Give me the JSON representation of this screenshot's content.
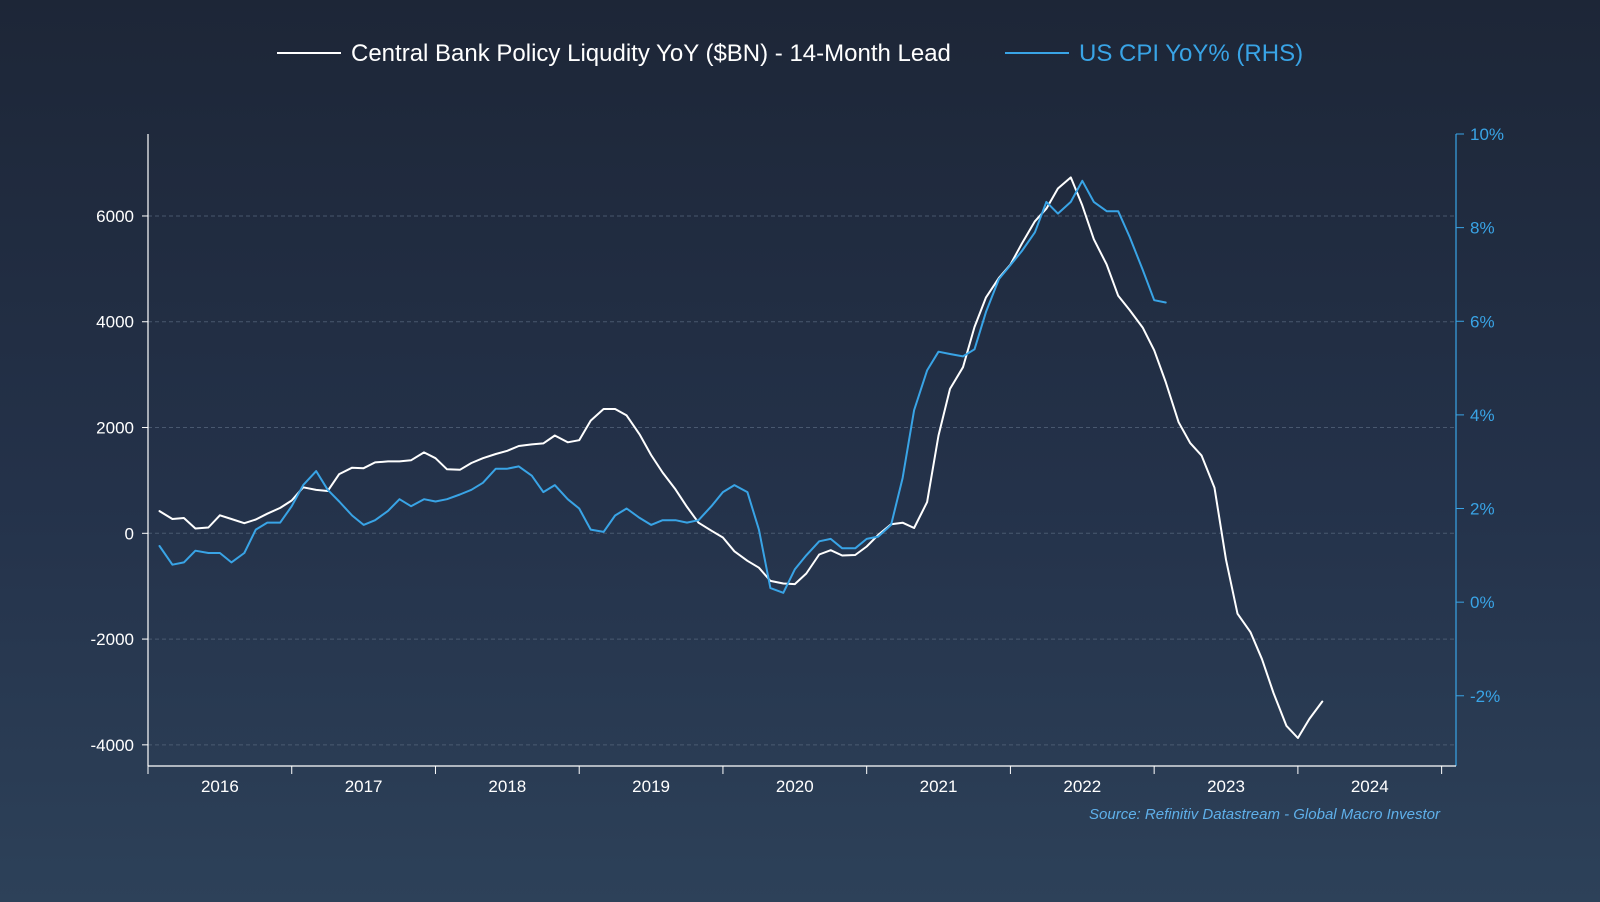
{
  "colors": {
    "liquidity": "#ffffff",
    "cpi": "#39a4e6",
    "grid": "#5a6a80",
    "axis": "#ffffff"
  },
  "chart_data": {
    "type": "line",
    "legend_position": "top-center",
    "grid": true,
    "x_axis": {
      "range": [
        2015.5,
        2024.6
      ],
      "ticks": [
        2016,
        2017,
        2018,
        2019,
        2020,
        2021,
        2022,
        2023,
        2024
      ],
      "tick_labels": [
        "2016",
        "2017",
        "2018",
        "2019",
        "2020",
        "2021",
        "2022",
        "2023",
        "2024"
      ]
    },
    "y_left": {
      "range": [
        -4400,
        7550
      ],
      "ticks": [
        -4000,
        -2000,
        0,
        2000,
        4000,
        6000
      ],
      "tick_labels": [
        "-4000",
        "-2000",
        "0",
        "2000",
        "4000",
        "6000"
      ]
    },
    "y_right": {
      "range": [
        -3.5,
        10
      ],
      "ticks": [
        -2,
        0,
        2,
        4,
        6,
        8,
        10
      ],
      "tick_labels": [
        "-2%",
        "0%",
        "2%",
        "4%",
        "6%",
        "8%",
        "10%"
      ]
    },
    "source": "Source: Refinitiv Datastream - Global Macro Investor",
    "series": [
      {
        "name": "Central Bank Policy Liqudity YoY ($BN) - 14-Month Lead",
        "axis": "left",
        "points": [
          [
            2015.58,
            420
          ],
          [
            2015.67,
            270
          ],
          [
            2015.75,
            290
          ],
          [
            2015.83,
            90
          ],
          [
            2015.92,
            110
          ],
          [
            2016.0,
            340
          ],
          [
            2016.08,
            270
          ],
          [
            2016.17,
            190
          ],
          [
            2016.25,
            260
          ],
          [
            2016.33,
            370
          ],
          [
            2016.42,
            480
          ],
          [
            2016.5,
            620
          ],
          [
            2016.58,
            870
          ],
          [
            2016.67,
            820
          ],
          [
            2016.75,
            800
          ],
          [
            2016.83,
            1120
          ],
          [
            2016.92,
            1240
          ],
          [
            2017.0,
            1230
          ],
          [
            2017.08,
            1340
          ],
          [
            2017.17,
            1360
          ],
          [
            2017.25,
            1360
          ],
          [
            2017.33,
            1380
          ],
          [
            2017.42,
            1530
          ],
          [
            2017.5,
            1420
          ],
          [
            2017.58,
            1210
          ],
          [
            2017.67,
            1200
          ],
          [
            2017.75,
            1330
          ],
          [
            2017.83,
            1420
          ],
          [
            2017.92,
            1500
          ],
          [
            2018.0,
            1560
          ],
          [
            2018.08,
            1650
          ],
          [
            2018.17,
            1680
          ],
          [
            2018.25,
            1700
          ],
          [
            2018.33,
            1850
          ],
          [
            2018.42,
            1720
          ],
          [
            2018.5,
            1760
          ],
          [
            2018.58,
            2130
          ],
          [
            2018.67,
            2350
          ],
          [
            2018.75,
            2350
          ],
          [
            2018.83,
            2230
          ],
          [
            2018.92,
            1870
          ],
          [
            2019.0,
            1480
          ],
          [
            2019.08,
            1150
          ],
          [
            2019.17,
            830
          ],
          [
            2019.25,
            500
          ],
          [
            2019.33,
            200
          ],
          [
            2019.42,
            50
          ],
          [
            2019.5,
            -80
          ],
          [
            2019.58,
            -340
          ],
          [
            2019.67,
            -520
          ],
          [
            2019.75,
            -650
          ],
          [
            2019.83,
            -900
          ],
          [
            2019.92,
            -950
          ],
          [
            2020.0,
            -960
          ],
          [
            2020.08,
            -760
          ],
          [
            2020.17,
            -400
          ],
          [
            2020.25,
            -320
          ],
          [
            2020.33,
            -420
          ],
          [
            2020.42,
            -410
          ],
          [
            2020.5,
            -250
          ],
          [
            2020.58,
            -30
          ],
          [
            2020.67,
            170
          ],
          [
            2020.75,
            200
          ],
          [
            2020.83,
            100
          ],
          [
            2020.92,
            590
          ],
          [
            2021.0,
            1850
          ],
          [
            2021.08,
            2730
          ],
          [
            2021.17,
            3140
          ],
          [
            2021.25,
            3900
          ],
          [
            2021.33,
            4460
          ],
          [
            2021.42,
            4830
          ],
          [
            2021.5,
            5080
          ],
          [
            2021.58,
            5480
          ],
          [
            2021.67,
            5900
          ],
          [
            2021.75,
            6140
          ],
          [
            2021.83,
            6520
          ],
          [
            2021.92,
            6730
          ],
          [
            2022.0,
            6200
          ],
          [
            2022.08,
            5560
          ],
          [
            2022.17,
            5080
          ],
          [
            2022.25,
            4490
          ],
          [
            2022.33,
            4220
          ],
          [
            2022.42,
            3890
          ],
          [
            2022.5,
            3460
          ],
          [
            2022.58,
            2860
          ],
          [
            2022.67,
            2100
          ],
          [
            2022.75,
            1710
          ],
          [
            2022.83,
            1470
          ],
          [
            2022.92,
            860
          ],
          [
            2023.0,
            -500
          ],
          [
            2023.08,
            -1520
          ],
          [
            2023.17,
            -1870
          ],
          [
            2023.25,
            -2380
          ],
          [
            2023.33,
            -3020
          ],
          [
            2023.42,
            -3640
          ],
          [
            2023.5,
            -3870
          ],
          [
            2023.58,
            -3510
          ],
          [
            2023.67,
            -3180
          ]
        ]
      },
      {
        "name": "US CPI YoY% (RHS)",
        "axis": "right",
        "points": [
          [
            2015.58,
            1.2
          ],
          [
            2015.67,
            0.8
          ],
          [
            2015.75,
            0.85
          ],
          [
            2015.83,
            1.1
          ],
          [
            2015.92,
            1.05
          ],
          [
            2016.0,
            1.05
          ],
          [
            2016.08,
            0.85
          ],
          [
            2016.17,
            1.05
          ],
          [
            2016.25,
            1.55
          ],
          [
            2016.33,
            1.7
          ],
          [
            2016.42,
            1.7
          ],
          [
            2016.5,
            2.05
          ],
          [
            2016.58,
            2.5
          ],
          [
            2016.67,
            2.8
          ],
          [
            2016.75,
            2.4
          ],
          [
            2016.83,
            2.15
          ],
          [
            2016.92,
            1.85
          ],
          [
            2017.0,
            1.65
          ],
          [
            2017.08,
            1.75
          ],
          [
            2017.17,
            1.95
          ],
          [
            2017.25,
            2.2
          ],
          [
            2017.33,
            2.05
          ],
          [
            2017.42,
            2.2
          ],
          [
            2017.5,
            2.15
          ],
          [
            2017.58,
            2.2
          ],
          [
            2017.67,
            2.3
          ],
          [
            2017.75,
            2.4
          ],
          [
            2017.83,
            2.55
          ],
          [
            2017.92,
            2.85
          ],
          [
            2018.0,
            2.85
          ],
          [
            2018.08,
            2.9
          ],
          [
            2018.17,
            2.7
          ],
          [
            2018.25,
            2.35
          ],
          [
            2018.33,
            2.5
          ],
          [
            2018.42,
            2.2
          ],
          [
            2018.5,
            2.0
          ],
          [
            2018.58,
            1.55
          ],
          [
            2018.67,
            1.5
          ],
          [
            2018.75,
            1.85
          ],
          [
            2018.83,
            2.0
          ],
          [
            2018.92,
            1.8
          ],
          [
            2019.0,
            1.65
          ],
          [
            2019.08,
            1.75
          ],
          [
            2019.17,
            1.75
          ],
          [
            2019.25,
            1.7
          ],
          [
            2019.33,
            1.75
          ],
          [
            2019.42,
            2.05
          ],
          [
            2019.5,
            2.35
          ],
          [
            2019.58,
            2.5
          ],
          [
            2019.67,
            2.35
          ],
          [
            2019.75,
            1.55
          ],
          [
            2019.83,
            0.3
          ],
          [
            2019.92,
            0.2
          ],
          [
            2020.0,
            0.7
          ],
          [
            2020.08,
            1.0
          ],
          [
            2020.17,
            1.3
          ],
          [
            2020.25,
            1.35
          ],
          [
            2020.33,
            1.15
          ],
          [
            2020.42,
            1.15
          ],
          [
            2020.5,
            1.35
          ],
          [
            2020.58,
            1.4
          ],
          [
            2020.67,
            1.65
          ],
          [
            2020.75,
            2.65
          ],
          [
            2020.83,
            4.1
          ],
          [
            2020.92,
            4.95
          ],
          [
            2021.0,
            5.35
          ],
          [
            2021.08,
            5.3
          ],
          [
            2021.17,
            5.25
          ],
          [
            2021.25,
            5.4
          ],
          [
            2021.33,
            6.2
          ],
          [
            2021.42,
            6.9
          ],
          [
            2021.5,
            7.2
          ],
          [
            2021.58,
            7.5
          ],
          [
            2021.67,
            7.9
          ],
          [
            2021.75,
            8.55
          ],
          [
            2021.83,
            8.3
          ],
          [
            2021.92,
            8.55
          ],
          [
            2022.0,
            9.0
          ],
          [
            2022.08,
            8.55
          ],
          [
            2022.17,
            8.35
          ],
          [
            2022.25,
            8.35
          ],
          [
            2022.33,
            7.8
          ],
          [
            2022.42,
            7.1
          ],
          [
            2022.5,
            6.45
          ],
          [
            2022.58,
            6.4
          ]
        ]
      }
    ]
  }
}
